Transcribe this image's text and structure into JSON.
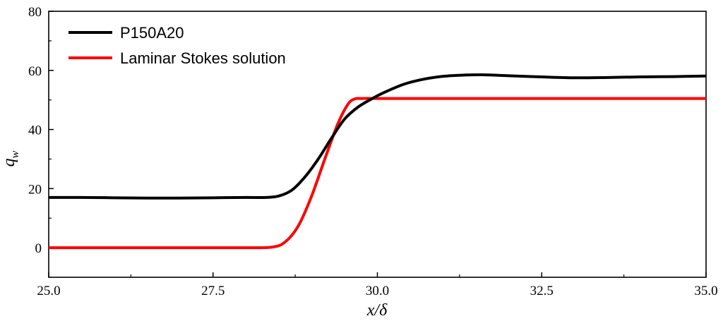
{
  "chart_data": {
    "type": "line",
    "title": "",
    "xlabel": "x/δ",
    "ylabel": "q",
    "ylabel_subscript": "w",
    "xlim": [
      25.0,
      35.0
    ],
    "ylim": [
      -10,
      80
    ],
    "xticks": [
      "25.0",
      "27.5",
      "30.0",
      "32.5",
      "35.0"
    ],
    "xtick_values": [
      25.0,
      27.5,
      30.0,
      32.5,
      35.0
    ],
    "yticks": [
      "0",
      "20",
      "40",
      "60",
      "80"
    ],
    "ytick_values": [
      0,
      20,
      40,
      60,
      80
    ],
    "grid": false,
    "legend_position": "top-left",
    "series": [
      {
        "name": "P150A20",
        "color": "#000000",
        "x": [
          25.0,
          25.5,
          26.0,
          26.5,
          27.0,
          27.5,
          28.0,
          28.3,
          28.5,
          28.7,
          28.9,
          29.1,
          29.3,
          29.5,
          29.7,
          29.9,
          30.1,
          30.4,
          30.7,
          31.0,
          31.3,
          31.6,
          32.0,
          32.5,
          33.0,
          33.5,
          34.0,
          34.5,
          35.0
        ],
        "y": [
          17.0,
          17.0,
          16.9,
          16.8,
          16.8,
          16.9,
          17.0,
          17.0,
          17.5,
          19.5,
          24.0,
          30.0,
          37.0,
          43.5,
          47.5,
          50.2,
          52.5,
          55.3,
          57.0,
          58.0,
          58.4,
          58.5,
          58.2,
          57.8,
          57.5,
          57.6,
          57.8,
          57.9,
          58.1
        ]
      },
      {
        "name": "Laminar Stokes solution",
        "color": "#ff0000",
        "x": [
          25.0,
          26.0,
          27.0,
          28.0,
          28.4,
          28.6,
          28.8,
          29.0,
          29.2,
          29.4,
          29.55,
          29.65,
          29.75,
          30.0,
          31.0,
          32.0,
          33.0,
          34.0,
          35.0
        ],
        "y": [
          0,
          0,
          0,
          0,
          0.2,
          2.0,
          7.5,
          17.5,
          30.0,
          42.0,
          48.5,
          50.3,
          50.5,
          50.5,
          50.5,
          50.5,
          50.5,
          50.5,
          50.5
        ]
      }
    ]
  }
}
